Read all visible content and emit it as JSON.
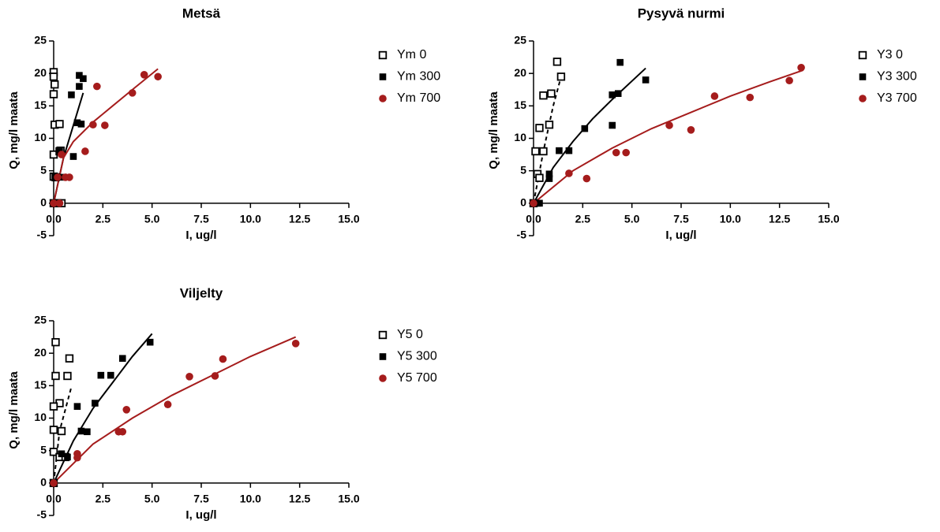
{
  "chart_data": [
    {
      "type": "scatter",
      "title": "Metsä",
      "xlabel": "I, ug/l",
      "ylabel": "Q, mg/l maata",
      "xlim": [
        0,
        15
      ],
      "ylim": [
        -5,
        25
      ],
      "xticks": [
        {
          "value": 0,
          "label": "0.0"
        },
        {
          "value": 2.5,
          "label": "2.5"
        },
        {
          "value": 5,
          "label": "5.0"
        },
        {
          "value": 7.5,
          "label": "7.5"
        },
        {
          "value": 10,
          "label": "10.0"
        },
        {
          "value": 12.5,
          "label": "12.5"
        },
        {
          "value": 15,
          "label": "15.0"
        }
      ],
      "yticks": [
        -5,
        0,
        5,
        10,
        15,
        20,
        25
      ],
      "series": [
        {
          "name": "Ym 0",
          "color": "#000000",
          "marker": "open-square",
          "x": [
            0,
            0,
            0.05,
            0,
            0.05,
            0.3,
            0,
            0.3,
            0.35,
            0,
            0.1,
            0,
            0.2,
            0.4
          ],
          "values": [
            20.2,
            19.5,
            18.3,
            16.8,
            12.1,
            12.2,
            7.5,
            8,
            8.1,
            4.1,
            4,
            0,
            0,
            0
          ]
        },
        {
          "name": "Ym 300",
          "color": "#000000",
          "marker": "square",
          "x": [
            1.3,
            1.5,
            1.3,
            0.9,
            1.2,
            1.4,
            1.0,
            0.3,
            0.1,
            0.4,
            0.1
          ],
          "values": [
            19.7,
            19.2,
            18,
            16.7,
            12.4,
            12.2,
            7.2,
            8,
            4,
            4,
            0
          ]
        },
        {
          "name": "Ym 700",
          "color": "#a51c1c",
          "marker": "circle",
          "x": [
            4.6,
            5.3,
            2.2,
            4.0,
            2.0,
            2.6,
            1.6,
            0.4,
            0.6,
            0.8,
            0.2,
            0,
            0.3
          ],
          "values": [
            19.8,
            19.5,
            18,
            17,
            12.1,
            12,
            8,
            7.5,
            4,
            4,
            4,
            0,
            0
          ]
        }
      ],
      "fits": [
        {
          "color": "#000000",
          "dashed": false,
          "x": [
            0,
            0.5,
            1,
            1.5
          ],
          "values": [
            0,
            7,
            12,
            17
          ]
        },
        {
          "color": "#a51c1c",
          "dashed": false,
          "x": [
            0,
            0.5,
            1,
            2,
            3,
            4,
            5.3
          ],
          "values": [
            0,
            7,
            9.5,
            12.5,
            15,
            17.5,
            20.7
          ]
        }
      ]
    },
    {
      "type": "scatter",
      "title": "Pysyvä nurmi",
      "xlabel": "I, ug/l",
      "ylabel": "Q, mg/l maata",
      "xlim": [
        0,
        15
      ],
      "ylim": [
        -5,
        25
      ],
      "xticks": [
        {
          "value": 0,
          "label": "0.0"
        },
        {
          "value": 2.5,
          "label": "2.5"
        },
        {
          "value": 5,
          "label": "5.0"
        },
        {
          "value": 7.5,
          "label": "7.5"
        },
        {
          "value": 10,
          "label": "10.0"
        },
        {
          "value": 12.5,
          "label": "12.5"
        },
        {
          "value": 15,
          "label": "15.0"
        }
      ],
      "yticks": [
        -5,
        0,
        5,
        10,
        15,
        20,
        25
      ],
      "series": [
        {
          "name": "Y3 0",
          "color": "#000000",
          "marker": "open-square",
          "x": [
            1.2,
            1.4,
            0.5,
            0.9,
            0.8,
            0.3,
            0.1,
            0.5,
            0.2,
            0.3,
            0
          ],
          "values": [
            21.8,
            19.5,
            16.6,
            16.9,
            12.1,
            11.6,
            8,
            8,
            4.5,
            3.9,
            0
          ]
        },
        {
          "name": "Y3 300",
          "color": "#000000",
          "marker": "square",
          "x": [
            4.4,
            5.7,
            4.0,
            4.3,
            2.6,
            4.0,
            1.3,
            1.8,
            0.8,
            0.8,
            0.2,
            0.3
          ],
          "values": [
            21.7,
            19,
            16.7,
            16.9,
            11.5,
            12,
            8.1,
            8.1,
            4.5,
            3.8,
            0,
            0
          ]
        },
        {
          "name": "Y3 700",
          "color": "#a51c1c",
          "marker": "circle",
          "x": [
            13.6,
            13.0,
            9.2,
            11,
            6.9,
            8,
            4.2,
            4.7,
            1.8,
            2.7,
            0
          ],
          "values": [
            20.9,
            18.9,
            16.5,
            16.3,
            12,
            11.3,
            7.8,
            7.8,
            4.6,
            3.8,
            0
          ]
        }
      ],
      "fits": [
        {
          "color": "#000000",
          "dashed": true,
          "x": [
            0,
            0.5,
            1,
            1.4
          ],
          "values": [
            0,
            8,
            15,
            19.5
          ]
        },
        {
          "color": "#000000",
          "dashed": false,
          "x": [
            0,
            1,
            2,
            3,
            4,
            5.7
          ],
          "values": [
            0,
            5.5,
            9.5,
            13,
            16,
            20.8
          ]
        },
        {
          "color": "#a51c1c",
          "dashed": false,
          "x": [
            0,
            2,
            4,
            6,
            8,
            10,
            12,
            13.7
          ],
          "values": [
            0,
            5,
            8.5,
            11.5,
            14,
            16.5,
            18.7,
            20.5
          ]
        }
      ]
    },
    {
      "type": "scatter",
      "title": "Viljelty",
      "xlabel": "I, ug/l",
      "ylabel": "Q, mg/l maata",
      "xlim": [
        0,
        15
      ],
      "ylim": [
        -5,
        25
      ],
      "xticks": [
        {
          "value": 0,
          "label": "0.0"
        },
        {
          "value": 2.5,
          "label": "2.5"
        },
        {
          "value": 5,
          "label": "5.0"
        },
        {
          "value": 7.5,
          "label": "7.5"
        },
        {
          "value": 10,
          "label": "10.0"
        },
        {
          "value": 12.5,
          "label": "12.5"
        },
        {
          "value": 15,
          "label": "15.0"
        }
      ],
      "yticks": [
        -5,
        0,
        5,
        10,
        15,
        20,
        25
      ],
      "series": [
        {
          "name": "Y5 0",
          "color": "#000000",
          "marker": "open-square",
          "x": [
            0.1,
            0.1,
            0.8,
            0.7,
            0.3,
            0,
            0,
            0.4,
            0,
            0.3,
            0.6,
            0
          ],
          "values": [
            21.7,
            16.5,
            19.2,
            16.5,
            12.3,
            11.8,
            8.2,
            8,
            4.8,
            4,
            4,
            0
          ]
        },
        {
          "name": "Y5 300",
          "color": "#000000",
          "marker": "square",
          "x": [
            4.9,
            3.5,
            2.4,
            2.9,
            1.2,
            2.1,
            1.4,
            1.7,
            0.4,
            0.7,
            0
          ],
          "values": [
            21.7,
            19.2,
            16.6,
            16.6,
            11.8,
            12.3,
            8,
            7.9,
            4.5,
            4,
            0
          ]
        },
        {
          "name": "Y5 700",
          "color": "#a51c1c",
          "marker": "circle",
          "x": [
            12.3,
            8.6,
            6.9,
            8.2,
            5.8,
            3.7,
            3.3,
            3.5,
            1.2,
            1.2,
            0
          ],
          "values": [
            21.5,
            19.1,
            16.4,
            16.5,
            12.1,
            11.3,
            7.9,
            7.9,
            4.5,
            3.9,
            0
          ]
        }
      ],
      "fits": [
        {
          "color": "#000000",
          "dashed": true,
          "x": [
            0,
            0.3,
            0.9
          ],
          "values": [
            0,
            8,
            14.8
          ]
        },
        {
          "color": "#000000",
          "dashed": false,
          "x": [
            0,
            1,
            2,
            3,
            4,
            5
          ],
          "values": [
            0,
            6.5,
            11.5,
            15.5,
            19.5,
            23
          ]
        },
        {
          "color": "#a51c1c",
          "dashed": false,
          "x": [
            0,
            2,
            4,
            6,
            8,
            10,
            12.3
          ],
          "values": [
            0,
            6,
            10,
            13.5,
            16.5,
            19.5,
            22.5
          ]
        }
      ]
    }
  ]
}
